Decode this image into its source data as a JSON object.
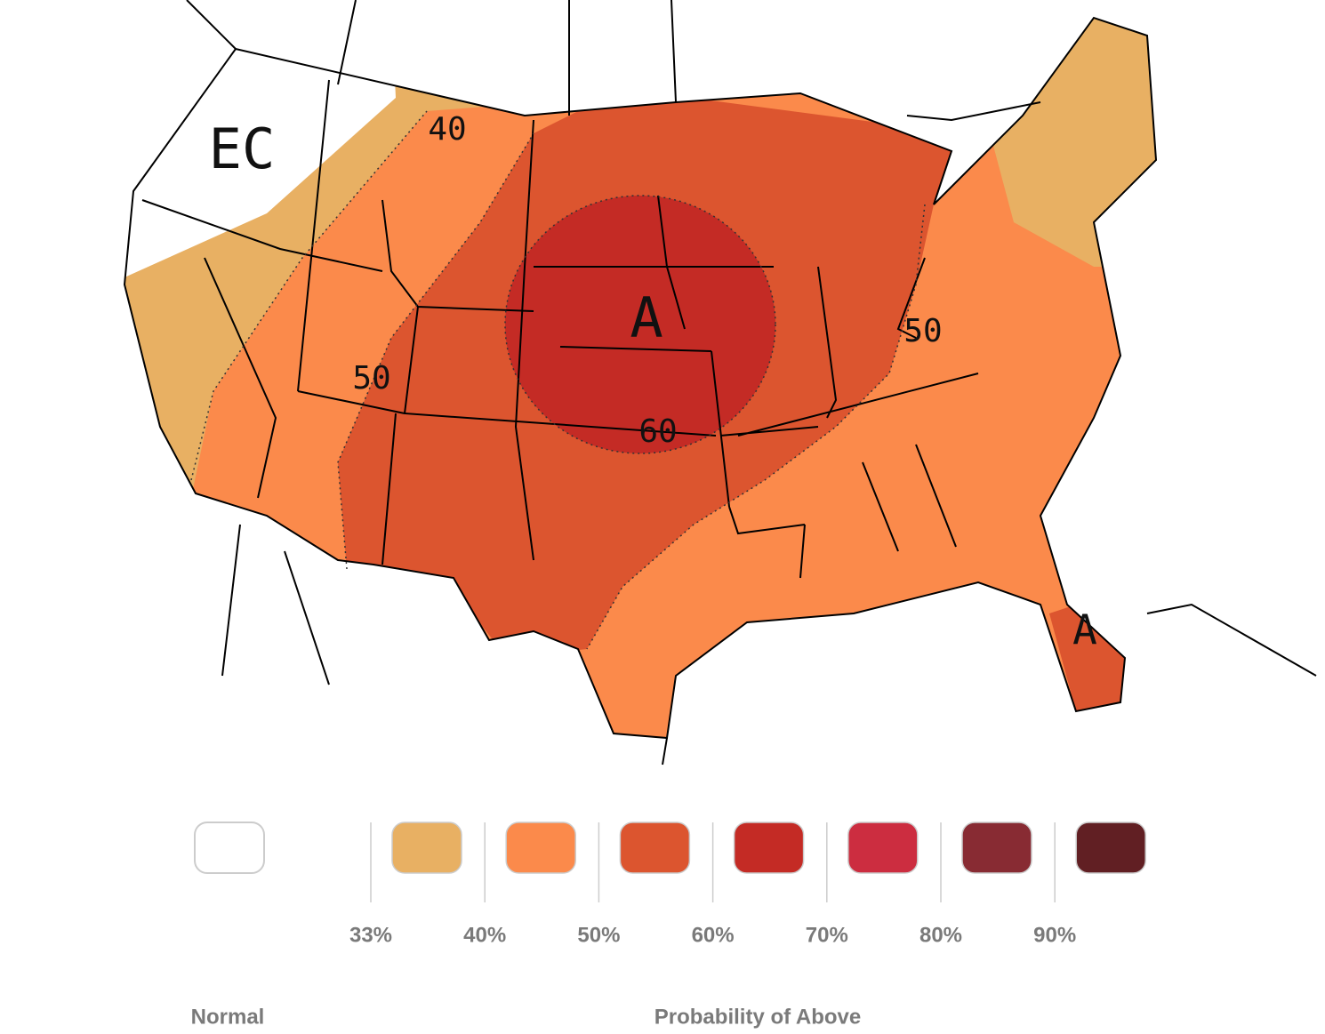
{
  "map": {
    "labels": [
      "EC",
      "40",
      "50",
      "50",
      "60",
      "A",
      "A"
    ]
  },
  "legend": {
    "swatches": [
      {
        "color": "#ffffff"
      },
      {
        "color": "#e8b063"
      },
      {
        "color": "#fb8a4b"
      },
      {
        "color": "#dc552f"
      },
      {
        "color": "#c42b25"
      },
      {
        "color": "#cc2d40"
      },
      {
        "color": "#882b33"
      },
      {
        "color": "#611f23"
      }
    ],
    "ticks": [
      "33%",
      "40%",
      "50%",
      "60%",
      "70%",
      "80%",
      "90%"
    ],
    "normal_label": "Normal",
    "title": "Probability of Above"
  }
}
